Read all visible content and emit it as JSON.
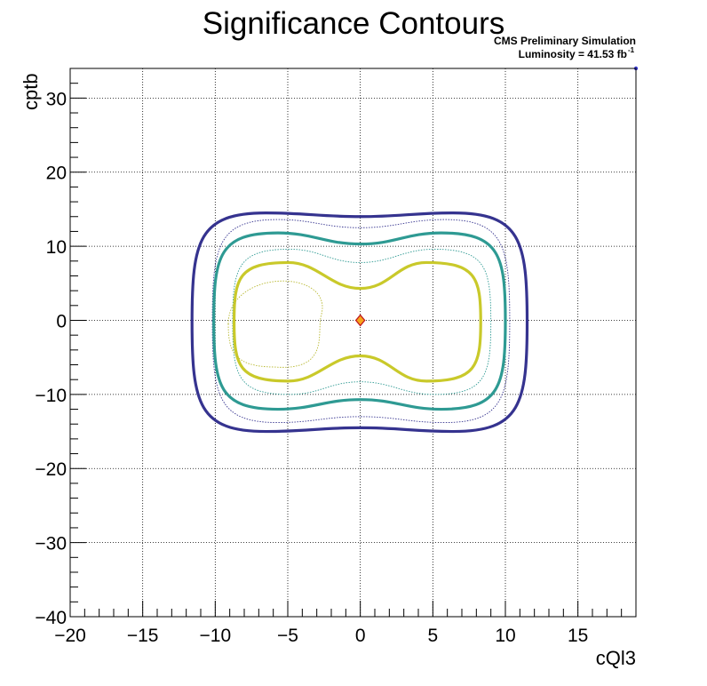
{
  "chart_data": {
    "type": "contour",
    "title": "Significance Contours",
    "annotations": {
      "line1": "CMS Preliminary Simulation",
      "line2_prefix": "Luminosity = 41.53 fb",
      "line2_sup": "-1"
    },
    "xlabel": "cQl3",
    "ylabel": "cptb",
    "xlim": [
      -20,
      19
    ],
    "ylim": [
      -40,
      34
    ],
    "xticks": [
      -20,
      -15,
      -10,
      -5,
      0,
      5,
      10,
      15
    ],
    "yticks": [
      -40,
      -30,
      -20,
      -10,
      0,
      10,
      20,
      30
    ],
    "xtick_labels": [
      "−20",
      "−15",
      "−10",
      "−5",
      "0",
      "5",
      "10",
      "15"
    ],
    "ytick_labels": [
      "−40",
      "−30",
      "−20",
      "−10",
      "0",
      "10",
      "20",
      "30"
    ],
    "grid": true,
    "contours": [
      {
        "level": "outer",
        "color": "#35338f",
        "style": "solid",
        "xmax": 11.5,
        "ymax": 14.5,
        "ymin": -15.0,
        "waist": 14.0,
        "waist_low": -14.5,
        "xmin": -11.6
      },
      {
        "level": "outer-inner",
        "color": "#35338f",
        "style": "dotted",
        "xmax": 10.3,
        "ymax": 13.6,
        "ymin": -13.8,
        "waist": 12.5,
        "waist_low": -13.0,
        "xmin": -10.2
      },
      {
        "level": "middle",
        "color": "#2e9a93",
        "style": "solid",
        "xmax": 10.0,
        "ymax": 11.8,
        "ymin": -12.0,
        "waist": 10.3,
        "waist_low": -10.7,
        "xmin": -10.1
      },
      {
        "level": "middle-inner",
        "color": "#2e9a93",
        "style": "dotted",
        "xmax": 9.0,
        "ymax": 9.6,
        "ymin": -10.0,
        "waist": 7.8,
        "waist_low": -8.3,
        "xmin": -8.8
      },
      {
        "level": "inner",
        "color": "#c9c92a",
        "style": "solid",
        "xmax": 8.3,
        "ymax": 7.8,
        "ymin": -8.2,
        "waist": 4.3,
        "waist_low": -4.8,
        "xmin": -8.7
      },
      {
        "level": "inner-lobe",
        "color": "#b8b830",
        "style": "dotted",
        "center": [
          -5.9,
          -0.5
        ],
        "rx": 3.2,
        "ry": 5.8
      }
    ],
    "marker": {
      "x": 0,
      "y": 0,
      "fill": "#f7a51b",
      "stroke": "#c0181e"
    },
    "corner_marker": {
      "x": 19,
      "y": 34,
      "color": "#3b3bd6"
    }
  }
}
